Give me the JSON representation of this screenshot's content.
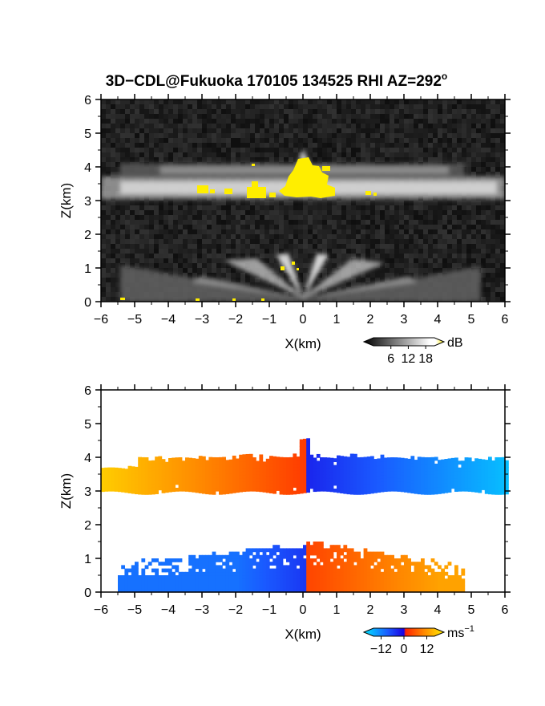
{
  "chart_data": [
    {
      "type": "heatmap",
      "title": "3D−CDL@Fukuoka 170105 134525 RHI AZ=292",
      "title_superscript": "o",
      "xlabel": "X(km)",
      "ylabel": "Z(km)",
      "xlim": [
        -6,
        6
      ],
      "ylim": [
        0,
        6
      ],
      "xticks": [
        "−6",
        "−5",
        "−4",
        "−3",
        "−2",
        "−1",
        "0",
        "1",
        "2",
        "3",
        "4",
        "5",
        "6"
      ],
      "yticks": [
        "0",
        "1",
        "2",
        "3",
        "4",
        "5",
        "6"
      ],
      "background": "noise (dark gray)",
      "features": [
        {
          "name": "cloud layer",
          "z_range": [
            3.0,
            4.0
          ],
          "x_range": [
            -6,
            6
          ]
        },
        {
          "name": "boundary layer",
          "z_range": [
            0.0,
            1.4
          ],
          "x_range": [
            -6,
            6
          ]
        },
        {
          "name": "strong echo",
          "x_range": [
            -0.6,
            0.9
          ],
          "z_range": [
            3.1,
            4.3
          ]
        }
      ],
      "colorbar": {
        "unit": "dB",
        "tick_labels": [
          "6",
          "12",
          "18"
        ],
        "ticks": [
          6,
          12,
          18
        ],
        "range": [
          0,
          21
        ],
        "colors": [
          "#000000",
          "#ffffff",
          "#ffee00"
        ]
      }
    },
    {
      "type": "heatmap",
      "xlabel": "X(km)",
      "ylabel": "Z(km)",
      "xlim": [
        -6,
        6
      ],
      "ylim": [
        0,
        6
      ],
      "xticks": [
        "−6",
        "−5",
        "−4",
        "−3",
        "−2",
        "−1",
        "0",
        "1",
        "2",
        "3",
        "4",
        "5",
        "6"
      ],
      "yticks": [
        "0",
        "1",
        "2",
        "3",
        "4",
        "5",
        "6"
      ],
      "features": [
        {
          "name": "upper layer",
          "z_range": [
            2.9,
            4.5
          ],
          "x_left_ms": 12,
          "x_right_ms": -12
        },
        {
          "name": "lower layer",
          "z_range": [
            0.0,
            1.6
          ],
          "x_left_ms": -8,
          "x_right_ms": 10
        }
      ],
      "colorbar": {
        "unit": "ms",
        "unit_exponent": "−1",
        "tick_labels": [
          "−12",
          "0",
          "12"
        ],
        "ticks": [
          -12,
          0,
          12
        ],
        "range": [
          -16,
          16
        ],
        "colors": [
          "#00e5ff",
          "#0044ff",
          "#0000ff",
          "#ff2200",
          "#ff8800",
          "#ffee00"
        ]
      }
    }
  ]
}
